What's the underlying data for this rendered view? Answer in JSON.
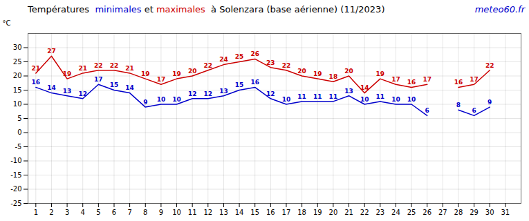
{
  "chart_data": {
    "type": "line",
    "title": "Températures  minimales et maximales  à Solenzara (base aérienne) (11/2023)",
    "ylabel": "°C",
    "x": [
      1,
      2,
      3,
      4,
      5,
      6,
      7,
      8,
      9,
      10,
      11,
      12,
      13,
      14,
      15,
      16,
      17,
      18,
      19,
      20,
      21,
      22,
      23,
      24,
      25,
      26,
      27,
      28,
      29,
      30,
      31
    ],
    "series": [
      {
        "name": "minimales",
        "color": "#0000cc",
        "values": [
          16,
          14,
          13,
          12,
          17,
          15,
          14,
          9,
          10,
          10,
          12,
          12,
          13,
          15,
          16,
          12,
          10,
          11,
          11,
          11,
          13,
          10,
          11,
          10,
          10,
          6,
          null,
          8,
          6,
          9,
          null
        ]
      },
      {
        "name": "maximales",
        "color": "#cc0000",
        "values": [
          21,
          27,
          19,
          21,
          22,
          22,
          21,
          19,
          17,
          19,
          20,
          22,
          24,
          25,
          26,
          23,
          22,
          20,
          19,
          18,
          20,
          14,
          19,
          17,
          16,
          17,
          null,
          16,
          17,
          22,
          null
        ]
      }
    ],
    "xlim": [
      0.5,
      32
    ],
    "xticks": [
      1,
      2,
      3,
      4,
      5,
      6,
      7,
      8,
      9,
      10,
      11,
      12,
      13,
      14,
      15,
      16,
      17,
      18,
      19,
      20,
      21,
      22,
      23,
      24,
      25,
      26,
      27,
      28,
      29,
      30,
      31
    ],
    "ylim": [
      -25,
      35
    ],
    "yticks": [
      -25,
      -20,
      -15,
      -10,
      -5,
      0,
      5,
      10,
      15,
      20,
      25,
      30
    ],
    "grid": true,
    "data_labels": true,
    "annotations": [
      {
        "text": "meteo60.fr",
        "color": "#0000cc"
      }
    ]
  }
}
